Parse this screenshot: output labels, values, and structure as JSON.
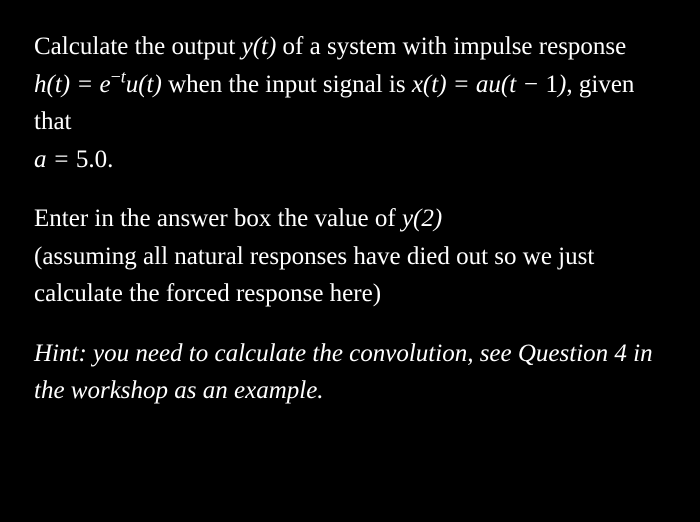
{
  "text_color": "#ffffff",
  "background_color": "#000000",
  "font_family": "serif",
  "base_fontsize_pt": 19,
  "p1": {
    "pre1": "Calculate the output ",
    "yt": "y(t)",
    "mid1": " of a system with impulse response ",
    "ht": "h(t) = e",
    "exp_minus": "−",
    "exp_t": "t",
    "ut": "u(t)",
    "mid2": " when the input signal is ",
    "xt": "x(t) = au(t − ",
    "one": "1",
    "close": ")",
    "comma": ",",
    "mid3": " given that",
    "a_eq": "a = ",
    "a_val": "5.0",
    "period": "."
  },
  "p2": {
    "pre": "Enter in the answer box the value of ",
    "y2": "y(2)",
    "post": " (assuming all natural responses have died out so we just calculate the forced response here)"
  },
  "hint": "Hint: you need to calculate the convolution, see Question 4 in the workshop as an example.",
  "parameters": {
    "a": 5.0,
    "evaluate_at_t": 2,
    "shift": 1
  }
}
